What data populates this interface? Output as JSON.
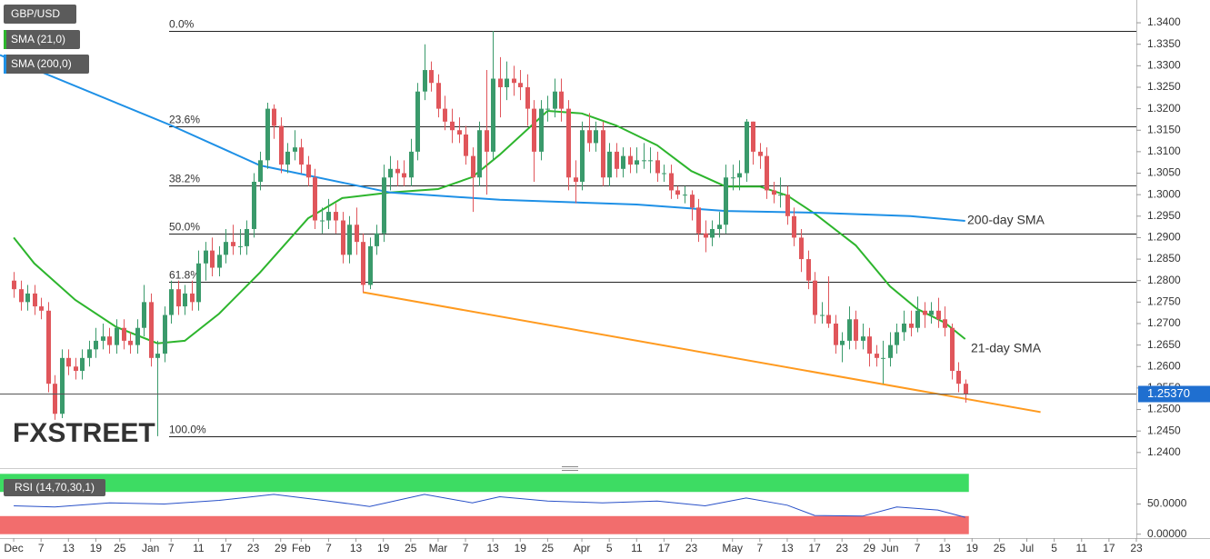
{
  "chart_data": {
    "type": "candlestick",
    "symbol": "GBP/USD",
    "watermark": "FXSTREET",
    "up_color": "#3a9a6b",
    "down_color": "#e0565b",
    "xlim": [
      -2,
      164
    ],
    "xticks": [
      {
        "value": 0,
        "label": "Dec"
      },
      {
        "value": 4,
        "label": "7"
      },
      {
        "value": 8,
        "label": "13"
      },
      {
        "value": 12,
        "label": "19"
      },
      {
        "value": 15.5,
        "label": "25"
      },
      {
        "value": 20,
        "label": "Jan"
      },
      {
        "value": 23,
        "label": "7"
      },
      {
        "value": 27,
        "label": "11"
      },
      {
        "value": 31,
        "label": "17"
      },
      {
        "value": 35,
        "label": "23"
      },
      {
        "value": 39,
        "label": "29"
      },
      {
        "value": 42,
        "label": "Feb"
      },
      {
        "value": 46,
        "label": "7"
      },
      {
        "value": 50,
        "label": "13"
      },
      {
        "value": 54,
        "label": "19"
      },
      {
        "value": 58,
        "label": "25"
      },
      {
        "value": 62,
        "label": "Mar"
      },
      {
        "value": 66,
        "label": "7"
      },
      {
        "value": 70,
        "label": "13"
      },
      {
        "value": 74,
        "label": "19"
      },
      {
        "value": 78,
        "label": "25"
      },
      {
        "value": 83,
        "label": "Apr"
      },
      {
        "value": 87,
        "label": "5"
      },
      {
        "value": 91,
        "label": "11"
      },
      {
        "value": 95,
        "label": "17"
      },
      {
        "value": 99,
        "label": "23"
      },
      {
        "value": 105,
        "label": "May"
      },
      {
        "value": 109,
        "label": "7"
      },
      {
        "value": 113,
        "label": "13"
      },
      {
        "value": 117,
        "label": "17"
      },
      {
        "value": 121,
        "label": "23"
      },
      {
        "value": 125,
        "label": "29"
      },
      {
        "value": 128,
        "label": "Jun"
      },
      {
        "value": 132,
        "label": "7"
      },
      {
        "value": 136,
        "label": "13"
      },
      {
        "value": 140,
        "label": "19"
      },
      {
        "value": 144,
        "label": "25"
      },
      {
        "value": 148,
        "label": "Jul"
      },
      {
        "value": 152,
        "label": "5"
      },
      {
        "value": 156,
        "label": "11"
      },
      {
        "value": 160,
        "label": "17"
      },
      {
        "value": 164,
        "label": "23"
      }
    ],
    "ylim": [
      1.237,
      1.3453
    ],
    "yticks": [
      {
        "value": 1.24,
        "label": "1.2400"
      },
      {
        "value": 1.245,
        "label": "1.2450"
      },
      {
        "value": 1.25,
        "label": "1.2500"
      },
      {
        "value": 1.255,
        "label": "1.2550"
      },
      {
        "value": 1.26,
        "label": "1.2600"
      },
      {
        "value": 1.265,
        "label": "1.2650"
      },
      {
        "value": 1.27,
        "label": "1.2700"
      },
      {
        "value": 1.275,
        "label": "1.2750"
      },
      {
        "value": 1.28,
        "label": "1.2800"
      },
      {
        "value": 1.285,
        "label": "1.2850"
      },
      {
        "value": 1.29,
        "label": "1.2900"
      },
      {
        "value": 1.295,
        "label": "1.2950"
      },
      {
        "value": 1.3,
        "label": "1.3000"
      },
      {
        "value": 1.305,
        "label": "1.3050"
      },
      {
        "value": 1.31,
        "label": "1.3100"
      },
      {
        "value": 1.315,
        "label": "1.3150"
      },
      {
        "value": 1.32,
        "label": "1.3200"
      },
      {
        "value": 1.325,
        "label": "1.3250"
      },
      {
        "value": 1.33,
        "label": "1.3300"
      },
      {
        "value": 1.335,
        "label": "1.3350"
      },
      {
        "value": 1.34,
        "label": "1.3400"
      }
    ],
    "last_price": {
      "value": 1.2537,
      "label": "1.25370"
    },
    "open": [
      1.28,
      1.278,
      1.275,
      1.277,
      1.274,
      1.273,
      1.256,
      1.249,
      1.262,
      1.26,
      1.259,
      1.262,
      1.264,
      1.266,
      1.267,
      1.265,
      1.269,
      1.266,
      1.265,
      1.269,
      1.275,
      1.262,
      1.263,
      1.272,
      1.278,
      1.274,
      1.277,
      1.275,
      1.284,
      1.287,
      1.283,
      1.286,
      1.289,
      1.288,
      1.288,
      1.292,
      1.303,
      1.308,
      1.32,
      1.316,
      1.307,
      1.31,
      1.311,
      1.307,
      1.304,
      1.294,
      1.294,
      1.296,
      1.294,
      1.286,
      1.293,
      1.289,
      1.279,
      1.288,
      1.291,
      1.304,
      1.306,
      1.305,
      1.304,
      1.31,
      1.324,
      1.329,
      1.326,
      1.32,
      1.317,
      1.315,
      1.314,
      1.309,
      1.304,
      1.315,
      1.31,
      1.327,
      1.325,
      1.327,
      1.326,
      1.325,
      1.32,
      1.31,
      1.32,
      1.32,
      1.324,
      1.32,
      1.304,
      1.303,
      1.315,
      1.312,
      1.315,
      1.304,
      1.31,
      1.306,
      1.309,
      1.307,
      1.308,
      1.308,
      1.308,
      1.305,
      1.305,
      1.301,
      1.3,
      1.3,
      1.297,
      1.291,
      1.29,
      1.292,
      1.293,
      1.304,
      1.304,
      1.305,
      1.317,
      1.31,
      1.309,
      1.301,
      1.3,
      1.3,
      1.295,
      1.29,
      1.285,
      1.28,
      1.272,
      1.272,
      1.27,
      1.265,
      1.266,
      1.271,
      1.266,
      1.267,
      1.263,
      1.262,
      1.262,
      1.265,
      1.268,
      1.27,
      1.269,
      1.273,
      1.272,
      1.273,
      1.271,
      1.269,
      1.259,
      1.256
    ],
    "high": [
      1.282,
      1.28,
      1.279,
      1.279,
      1.276,
      1.275,
      1.258,
      1.264,
      1.264,
      1.262,
      1.264,
      1.266,
      1.269,
      1.27,
      1.269,
      1.271,
      1.271,
      1.268,
      1.271,
      1.279,
      1.277,
      1.266,
      1.274,
      1.28,
      1.28,
      1.279,
      1.28,
      1.287,
      1.289,
      1.29,
      1.288,
      1.292,
      1.293,
      1.292,
      1.294,
      1.305,
      1.31,
      1.3214,
      1.321,
      1.318,
      1.312,
      1.315,
      1.313,
      1.309,
      1.306,
      1.297,
      1.299,
      1.298,
      1.296,
      1.295,
      1.297,
      1.291,
      1.29,
      1.293,
      1.307,
      1.309,
      1.308,
      1.308,
      1.313,
      1.326,
      1.335,
      1.331,
      1.328,
      1.323,
      1.32,
      1.318,
      1.316,
      1.311,
      1.317,
      1.329,
      1.3381,
      1.332,
      1.331,
      1.33,
      1.329,
      1.328,
      1.322,
      1.322,
      1.323,
      1.327,
      1.327,
      1.322,
      1.308,
      1.317,
      1.319,
      1.317,
      1.317,
      1.312,
      1.312,
      1.311,
      1.311,
      1.311,
      1.312,
      1.311,
      1.31,
      1.307,
      1.307,
      1.302,
      1.302,
      1.301,
      1.299,
      1.294,
      1.294,
      1.296,
      1.307,
      1.307,
      1.308,
      1.3176,
      1.317,
      1.312,
      1.311,
      1.303,
      1.304,
      1.302,
      1.297,
      1.292,
      1.287,
      1.282,
      1.275,
      1.281,
      1.272,
      1.268,
      1.274,
      1.273,
      1.27,
      1.269,
      1.265,
      1.266,
      1.268,
      1.27,
      1.273,
      1.273,
      1.2763,
      1.275,
      1.275,
      1.276,
      1.274,
      1.27,
      1.261,
      1.257
    ],
    "low": [
      1.276,
      1.273,
      1.273,
      1.272,
      1.271,
      1.254,
      1.2476,
      1.248,
      1.258,
      1.257,
      1.257,
      1.26,
      1.262,
      1.264,
      1.263,
      1.263,
      1.264,
      1.263,
      1.263,
      1.267,
      1.26,
      1.2438,
      1.261,
      1.27,
      1.272,
      1.272,
      1.273,
      1.273,
      1.28,
      1.281,
      1.281,
      1.284,
      1.286,
      1.286,
      1.286,
      1.29,
      1.301,
      1.306,
      1.313,
      1.305,
      1.305,
      1.308,
      1.305,
      1.302,
      1.292,
      1.291,
      1.292,
      1.291,
      1.284,
      1.284,
      1.286,
      1.2773,
      1.278,
      1.286,
      1.289,
      1.301,
      1.302,
      1.302,
      1.302,
      1.308,
      1.322,
      1.324,
      1.318,
      1.315,
      1.312,
      1.312,
      1.307,
      1.296,
      1.302,
      1.3,
      1.308,
      1.318,
      1.322,
      1.323,
      1.322,
      1.316,
      1.303,
      1.308,
      1.317,
      1.318,
      1.317,
      1.301,
      1.298,
      1.301,
      1.31,
      1.31,
      1.302,
      1.302,
      1.304,
      1.304,
      1.305,
      1.305,
      1.306,
      1.305,
      1.303,
      1.303,
      1.299,
      1.299,
      1.298,
      1.294,
      1.289,
      1.2866,
      1.288,
      1.29,
      1.291,
      1.301,
      1.301,
      1.303,
      1.307,
      1.306,
      1.299,
      1.298,
      1.297,
      1.293,
      1.288,
      1.282,
      1.278,
      1.27,
      1.27,
      1.269,
      1.263,
      1.261,
      1.264,
      1.264,
      1.264,
      1.26,
      1.26,
      1.256,
      1.26,
      1.263,
      1.266,
      1.267,
      1.268,
      1.269,
      1.27,
      1.269,
      1.267,
      1.257,
      1.254,
      1.2516
    ],
    "close": [
      1.278,
      1.275,
      1.277,
      1.274,
      1.273,
      1.256,
      1.249,
      1.262,
      1.26,
      1.259,
      1.262,
      1.264,
      1.266,
      1.267,
      1.265,
      1.269,
      1.266,
      1.265,
      1.269,
      1.275,
      1.262,
      1.263,
      1.272,
      1.278,
      1.274,
      1.277,
      1.275,
      1.284,
      1.287,
      1.283,
      1.286,
      1.289,
      1.288,
      1.288,
      1.292,
      1.303,
      1.308,
      1.32,
      1.316,
      1.307,
      1.31,
      1.311,
      1.307,
      1.304,
      1.294,
      1.294,
      1.296,
      1.294,
      1.286,
      1.293,
      1.289,
      1.279,
      1.288,
      1.291,
      1.304,
      1.306,
      1.305,
      1.304,
      1.31,
      1.324,
      1.329,
      1.326,
      1.32,
      1.317,
      1.315,
      1.314,
      1.309,
      1.304,
      1.315,
      1.31,
      1.327,
      1.325,
      1.327,
      1.326,
      1.325,
      1.32,
      1.31,
      1.32,
      1.32,
      1.324,
      1.32,
      1.304,
      1.303,
      1.315,
      1.312,
      1.315,
      1.304,
      1.31,
      1.306,
      1.309,
      1.307,
      1.308,
      1.308,
      1.308,
      1.305,
      1.305,
      1.301,
      1.3,
      1.3,
      1.297,
      1.291,
      1.29,
      1.292,
      1.293,
      1.304,
      1.304,
      1.305,
      1.317,
      1.31,
      1.309,
      1.301,
      1.3,
      1.3,
      1.295,
      1.29,
      1.285,
      1.28,
      1.272,
      1.272,
      1.27,
      1.265,
      1.266,
      1.271,
      1.266,
      1.267,
      1.263,
      1.262,
      1.262,
      1.265,
      1.268,
      1.27,
      1.269,
      1.273,
      1.272,
      1.273,
      1.271,
      1.269,
      1.259,
      1.256,
      1.2537
    ],
    "series": [
      {
        "name": "SMA (21,0)",
        "label": "21-day SMA",
        "color": "#2db52d",
        "x": [
          0,
          3,
          9,
          15,
          21,
          25,
          30,
          36,
          43,
          48,
          55,
          62,
          67,
          71,
          78,
          83,
          88,
          94,
          99,
          104,
          109,
          113,
          117,
          123,
          128,
          132,
          136,
          139
        ],
        "values": [
          1.29,
          1.284,
          1.2755,
          1.2692,
          1.2654,
          1.266,
          1.2723,
          1.2819,
          1.2945,
          1.2992,
          1.3005,
          1.3013,
          1.3041,
          1.3093,
          1.3195,
          1.3189,
          1.3161,
          1.3115,
          1.3055,
          1.3019,
          1.3019,
          1.2998,
          1.2956,
          1.2882,
          1.2787,
          1.2734,
          1.2702,
          1.2664
        ]
      },
      {
        "name": "SMA (200,0)",
        "label": "200-day SMA",
        "color": "#1e90e6",
        "x": [
          -2,
          23,
          36,
          55,
          71,
          91,
          104,
          117,
          131,
          139
        ],
        "values": [
          1.3325,
          1.3161,
          1.3068,
          1.3005,
          1.2988,
          1.2977,
          1.2962,
          1.2958,
          1.295,
          1.2939
        ]
      }
    ],
    "support_line": {
      "color": "#ff9a1f",
      "x": [
        51,
        150
      ],
      "values": [
        1.2773,
        1.2494
      ]
    },
    "fibonacci": [
      {
        "value": 1.3381,
        "label": "0.0%"
      },
      {
        "value": 1.3159,
        "label": "23.6%"
      },
      {
        "value": 1.3022,
        "label": "38.2%"
      },
      {
        "value": 1.291,
        "label": "50.0%"
      },
      {
        "value": 1.2798,
        "label": "61.8%"
      },
      {
        "value": 1.2438,
        "label": "100.0%"
      }
    ],
    "rsi": {
      "type": "line",
      "name": "RSI (14,70,30,1)",
      "color": "#2850c8",
      "ylim": [
        -5,
        105
      ],
      "yticks": [
        {
          "value": 50,
          "label": "50.0000"
        },
        {
          "value": 0,
          "label": "0.00000"
        }
      ],
      "overbought": 70,
      "oversold": 30,
      "overbought_color": "#3ddc63",
      "oversold_color": "#f26d6d",
      "x": [
        0,
        6,
        14,
        22,
        30,
        38,
        46,
        52,
        60,
        67,
        71,
        78,
        86,
        94,
        101,
        107,
        113,
        117,
        124,
        129,
        135,
        139
      ],
      "values": [
        47,
        45,
        52,
        50,
        56,
        66,
        55,
        46,
        66,
        52,
        62,
        55,
        52,
        55,
        47,
        60,
        48,
        31,
        30,
        45,
        40,
        28
      ]
    }
  }
}
